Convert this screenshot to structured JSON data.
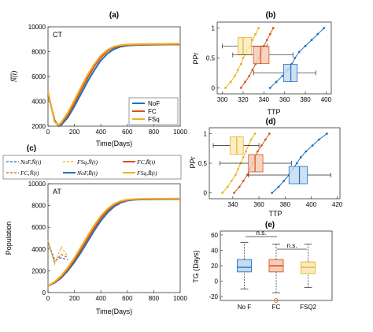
{
  "colors": {
    "nof": "#1f6fbf",
    "fc": "#d95319",
    "fsq": "#edb120",
    "fill_nof": "#c6dcf0",
    "fill_fc": "#f4cdb9",
    "fill_fsq": "#f9ebc0",
    "axis": "#333333",
    "whisker": "#222222",
    "outlier_fc": "#d95319"
  },
  "panel_a": {
    "label": "(a)",
    "tag": "CT",
    "xlabel": "Time(Days)",
    "ylabel": "N(t)",
    "xlim": [
      0,
      1000
    ],
    "ylim": [
      2000,
      10000
    ],
    "xticks": [
      "0",
      "200",
      "400",
      "600",
      "800",
      "1000"
    ],
    "yticks": [
      "2000",
      "4000",
      "6000",
      "8000",
      "10000"
    ],
    "legend": [
      "NoF",
      "FC",
      "FSq"
    ]
  },
  "panel_b": {
    "label": "(b)",
    "xlabel": "TTP",
    "ylabel": "PPr",
    "xlim": [
      295,
      405
    ],
    "ylim": [
      -0.1,
      1.1
    ],
    "xticks": [
      "300",
      "320",
      "340",
      "360",
      "380",
      "400"
    ],
    "yticks": [
      "0",
      "0.5",
      "1"
    ]
  },
  "panel_c": {
    "label": "(c)",
    "tag": "AT",
    "xlabel": "Time(Days)",
    "ylabel": "Population",
    "xlim": [
      0,
      1000
    ],
    "ylim": [
      0,
      10000
    ],
    "xticks": [
      "0",
      "200",
      "400",
      "600",
      "800",
      "1000"
    ],
    "yticks": [
      "0",
      "2000",
      "4000",
      "6000",
      "8000",
      "10000"
    ],
    "legend": [
      "NoF,N̄(t)",
      "FSq,N̄(t)",
      "FC,R̄(t)",
      "FC,N̄(t)",
      "NoF,R̄(t)",
      "FSq,R̄(t)"
    ]
  },
  "panel_d": {
    "label": "(d)",
    "xlabel": "TTP",
    "ylabel": "PPr",
    "xlim": [
      322,
      422
    ],
    "ylim": [
      -0.1,
      1.1
    ],
    "xticks": [
      "340",
      "360",
      "380",
      "400",
      "420"
    ],
    "yticks": [
      "0",
      "0.5",
      "1"
    ]
  },
  "panel_e": {
    "label": "(e)",
    "ylabel": "TG (Days)",
    "ylim": [
      -25,
      65
    ],
    "yticks": [
      "-20",
      "0",
      "20",
      "40",
      "60"
    ],
    "categories": [
      "No F",
      "FC",
      "FSQ2"
    ],
    "annotations": [
      "n.s.",
      "n.s."
    ]
  },
  "chart_data": [
    {
      "type": "line",
      "title": "(a)",
      "xlabel": "Time(Days)",
      "ylabel": "N(t)",
      "xlim": [
        0,
        1000
      ],
      "ylim": [
        2000,
        10000
      ],
      "x": [
        0,
        50,
        80,
        100,
        150,
        200,
        250,
        300,
        350,
        400,
        450,
        500,
        550,
        600,
        650,
        700,
        800,
        900,
        1000
      ],
      "series": [
        {
          "name": "NoF",
          "values": [
            4600,
            2500,
            2000,
            2100,
            2700,
            3600,
            4600,
            5600,
            6500,
            7300,
            7850,
            8200,
            8400,
            8480,
            8520,
            8540,
            8560,
            8570,
            8580
          ]
        },
        {
          "name": "FC",
          "values": [
            4700,
            2400,
            2050,
            2200,
            2900,
            3850,
            4900,
            5900,
            6800,
            7550,
            8050,
            8350,
            8480,
            8530,
            8560,
            8570,
            8580,
            8590,
            8600
          ]
        },
        {
          "name": "FSq",
          "values": [
            4800,
            2350,
            2100,
            2300,
            3100,
            4100,
            5150,
            6150,
            7000,
            7700,
            8150,
            8420,
            8530,
            8580,
            8600,
            8610,
            8620,
            8630,
            8640
          ]
        }
      ]
    },
    {
      "type": "scatter",
      "title": "(b)",
      "xlabel": "TTP",
      "ylabel": "PPr",
      "xlim": [
        295,
        405
      ],
      "ylim": [
        -0.1,
        1.1
      ],
      "series": [
        {
          "name": "FSq",
          "x": [
            303,
            308,
            312,
            315,
            318,
            320,
            323,
            326,
            329,
            332,
            335
          ],
          "y": [
            0.0,
            0.1,
            0.2,
            0.3,
            0.4,
            0.5,
            0.6,
            0.7,
            0.8,
            0.9,
            1.0
          ]
        },
        {
          "name": "FC",
          "x": [
            318,
            322,
            326,
            329,
            332,
            335,
            337,
            340,
            343,
            346,
            349
          ],
          "y": [
            0.0,
            0.1,
            0.2,
            0.3,
            0.4,
            0.5,
            0.6,
            0.7,
            0.8,
            0.9,
            1.0
          ]
        },
        {
          "name": "NoF",
          "x": [
            346,
            352,
            358,
            363,
            367,
            370,
            374,
            380,
            386,
            392,
            398
          ],
          "y": [
            0.0,
            0.1,
            0.2,
            0.3,
            0.4,
            0.5,
            0.6,
            0.7,
            0.8,
            0.9,
            1.0
          ]
        }
      ],
      "boxes": [
        {
          "name": "FSq",
          "whisker_low": 300,
          "q1": 315,
          "median": 320,
          "q3": 328,
          "whisker_high": 343,
          "y": 0.7
        },
        {
          "name": "FC",
          "whisker_low": 310,
          "q1": 330,
          "median": 337,
          "q3": 345,
          "whisker_high": 368,
          "y": 0.55
        },
        {
          "name": "NoF",
          "whisker_low": 330,
          "q1": 359,
          "median": 366,
          "q3": 372,
          "whisker_high": 390,
          "y": 0.25
        }
      ]
    },
    {
      "type": "line",
      "title": "(c)",
      "xlabel": "Time(Days)",
      "ylabel": "Population",
      "xlim": [
        0,
        1000
      ],
      "ylim": [
        0,
        10000
      ],
      "x": [
        0,
        50,
        100,
        150,
        200,
        250,
        300,
        350,
        400,
        450,
        500,
        550,
        600,
        650,
        700,
        800,
        900,
        1000
      ],
      "series": [
        {
          "name": "NoF,N̄(t)",
          "values": [
            4600,
            3000,
            3200,
            3000,
            null,
            null,
            null,
            null,
            null,
            null,
            null,
            null,
            null,
            null,
            null,
            null,
            null,
            null
          ]
        },
        {
          "name": "FC,N̄(t)",
          "values": [
            4700,
            2800,
            3500,
            3200,
            null,
            null,
            null,
            null,
            null,
            null,
            null,
            null,
            null,
            null,
            null,
            null,
            null,
            null
          ]
        },
        {
          "name": "FSq,N̄(t)",
          "values": [
            4800,
            2600,
            4200,
            3300,
            null,
            null,
            null,
            null,
            null,
            null,
            null,
            null,
            null,
            null,
            null,
            null,
            null,
            null
          ]
        },
        {
          "name": "NoF,R̄(t)",
          "values": [
            600,
            900,
            1350,
            2000,
            2800,
            3700,
            4700,
            5700,
            6600,
            7350,
            7900,
            8250,
            8450,
            8520,
            8550,
            8570,
            8580,
            8590
          ]
        },
        {
          "name": "FC,R̄(t)",
          "values": [
            600,
            950,
            1450,
            2150,
            3000,
            3950,
            4950,
            5950,
            6850,
            7550,
            8050,
            8350,
            8500,
            8560,
            8580,
            8590,
            8600,
            8610
          ]
        },
        {
          "name": "FSq,R̄(t)",
          "values": [
            600,
            1000,
            1550,
            2300,
            3200,
            4200,
            5200,
            6200,
            7050,
            7700,
            8150,
            8420,
            8540,
            8590,
            8610,
            8620,
            8630,
            8640
          ]
        }
      ]
    },
    {
      "type": "scatter",
      "title": "(d)",
      "xlabel": "TTP",
      "ylabel": "PPr",
      "xlim": [
        322,
        422
      ],
      "ylim": [
        -0.1,
        1.1
      ],
      "series": [
        {
          "name": "FSq",
          "x": [
            332,
            336,
            339,
            342,
            344,
            346,
            348,
            350,
            352,
            354,
            357
          ],
          "y": [
            0.0,
            0.1,
            0.2,
            0.3,
            0.4,
            0.5,
            0.6,
            0.7,
            0.8,
            0.9,
            1.0
          ]
        },
        {
          "name": "FC",
          "x": [
            341,
            345,
            348,
            351,
            353,
            355,
            357,
            359,
            362,
            365,
            368
          ],
          "y": [
            0.0,
            0.1,
            0.2,
            0.3,
            0.4,
            0.5,
            0.6,
            0.7,
            0.8,
            0.9,
            1.0
          ]
        },
        {
          "name": "NoF",
          "x": [
            370,
            375,
            379,
            383,
            386,
            389,
            392,
            396,
            401,
            406,
            412
          ],
          "y": [
            0.0,
            0.1,
            0.2,
            0.3,
            0.4,
            0.5,
            0.6,
            0.7,
            0.8,
            0.9,
            1.0
          ]
        }
      ],
      "boxes": [
        {
          "name": "FSq",
          "whisker_low": 325,
          "q1": 338,
          "median": 343,
          "q3": 348,
          "whisker_high": 360,
          "y": 0.8
        },
        {
          "name": "FC",
          "whisker_low": 330,
          "q1": 352,
          "median": 357,
          "q3": 363,
          "whisker_high": 385,
          "y": 0.5
        },
        {
          "name": "NoF",
          "whisker_low": 352,
          "q1": 383,
          "median": 391,
          "q3": 397,
          "whisker_high": 415,
          "y": 0.3
        }
      ]
    },
    {
      "type": "box",
      "title": "(e)",
      "ylabel": "TG (Days)",
      "ylim": [
        -25,
        65
      ],
      "categories": [
        "No F",
        "FC",
        "FSQ2"
      ],
      "boxes": [
        {
          "name": "No F",
          "whisker_low": -10,
          "q1": 12,
          "median": 18,
          "q3": 28,
          "whisker_high": 50
        },
        {
          "name": "FC",
          "whisker_low": -15,
          "q1": 12,
          "median": 20,
          "q3": 28,
          "whisker_high": 48,
          "outliers": [
            -25
          ]
        },
        {
          "name": "FSQ2",
          "whisker_low": -8,
          "q1": 10,
          "median": 18,
          "q3": 25,
          "whisker_high": 48
        }
      ],
      "annotations": [
        "n.s.",
        "n.s."
      ]
    }
  ]
}
